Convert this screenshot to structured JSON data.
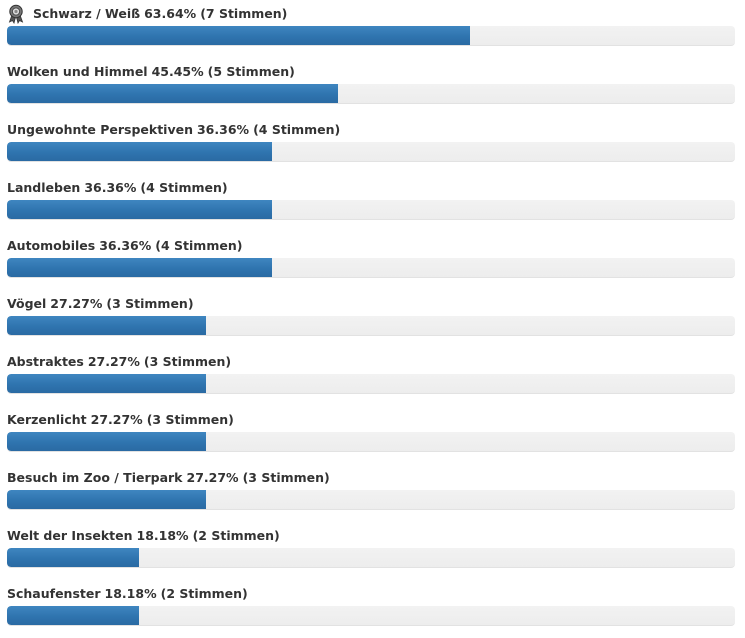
{
  "poll": {
    "winner_icon": "award-ribbon-icon",
    "bar_color": "#2f74af",
    "track_color": "#efefef",
    "options": [
      {
        "label": "Schwarz / Weiß",
        "percent_text": "63.64%",
        "votes_text": "(7 Stimmen)",
        "fraction": 0.6364,
        "winner": true
      },
      {
        "label": "Wolken und Himmel",
        "percent_text": "45.45%",
        "votes_text": "(5 Stimmen)",
        "fraction": 0.4545,
        "winner": false
      },
      {
        "label": "Ungewohnte Perspektiven",
        "percent_text": "36.36%",
        "votes_text": "(4 Stimmen)",
        "fraction": 0.3636,
        "winner": false
      },
      {
        "label": "Landleben",
        "percent_text": "36.36%",
        "votes_text": "(4 Stimmen)",
        "fraction": 0.3636,
        "winner": false
      },
      {
        "label": "Automobiles",
        "percent_text": "36.36%",
        "votes_text": "(4 Stimmen)",
        "fraction": 0.3636,
        "winner": false
      },
      {
        "label": "Vögel",
        "percent_text": "27.27%",
        "votes_text": "(3 Stimmen)",
        "fraction": 0.2727,
        "winner": false
      },
      {
        "label": "Abstraktes",
        "percent_text": "27.27%",
        "votes_text": "(3 Stimmen)",
        "fraction": 0.2727,
        "winner": false
      },
      {
        "label": "Kerzenlicht",
        "percent_text": "27.27%",
        "votes_text": "(3 Stimmen)",
        "fraction": 0.2727,
        "winner": false
      },
      {
        "label": "Besuch im Zoo / Tierpark",
        "percent_text": "27.27%",
        "votes_text": "(3 Stimmen)",
        "fraction": 0.2727,
        "winner": false
      },
      {
        "label": "Welt der Insekten",
        "percent_text": "18.18%",
        "votes_text": "(2 Stimmen)",
        "fraction": 0.1818,
        "winner": false
      },
      {
        "label": "Schaufenster",
        "percent_text": "18.18%",
        "votes_text": "(2 Stimmen)",
        "fraction": 0.1818,
        "winner": false
      }
    ]
  }
}
